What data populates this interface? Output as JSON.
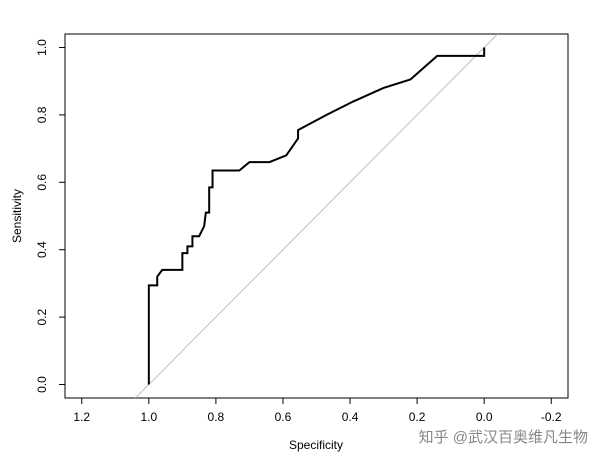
{
  "chart_data": {
    "type": "line",
    "x_label": "Specificity",
    "y_label": "Sensitivity",
    "x": [
      1.0,
      1.0,
      0.975,
      0.975,
      0.96,
      0.9,
      0.9,
      0.885,
      0.885,
      0.87,
      0.87,
      0.85,
      0.835,
      0.83,
      0.82,
      0.82,
      0.81,
      0.81,
      0.73,
      0.7,
      0.64,
      0.59,
      0.555,
      0.555,
      0.47,
      0.39,
      0.3,
      0.22,
      0.14,
      0.0,
      0.0
    ],
    "values": [
      0.0,
      0.294,
      0.294,
      0.32,
      0.34,
      0.34,
      0.39,
      0.39,
      0.41,
      0.41,
      0.44,
      0.44,
      0.47,
      0.51,
      0.51,
      0.585,
      0.585,
      0.635,
      0.635,
      0.66,
      0.66,
      0.68,
      0.73,
      0.755,
      0.8,
      0.84,
      0.88,
      0.905,
      0.975,
      0.975,
      1.0
    ],
    "color": "#000000",
    "reference_color": "#bebebe",
    "xlim": [
      1.25,
      -0.25
    ],
    "ylim": [
      -0.04,
      1.04
    ],
    "xticks": [
      1.2,
      {
        "value": 1.0,
        "label": "1.0"
      },
      0.8,
      0.6,
      0.4,
      0.2,
      {
        "value": 0.0,
        "label": "0.0"
      },
      -0.2
    ],
    "yticks": [
      {
        "value": 0.0,
        "label": "0.0"
      },
      0.2,
      0.4,
      0.6,
      0.8,
      {
        "value": 1.0,
        "label": "1.0"
      }
    ],
    "watermark": "知乎 @武汉百奥维凡生物"
  }
}
